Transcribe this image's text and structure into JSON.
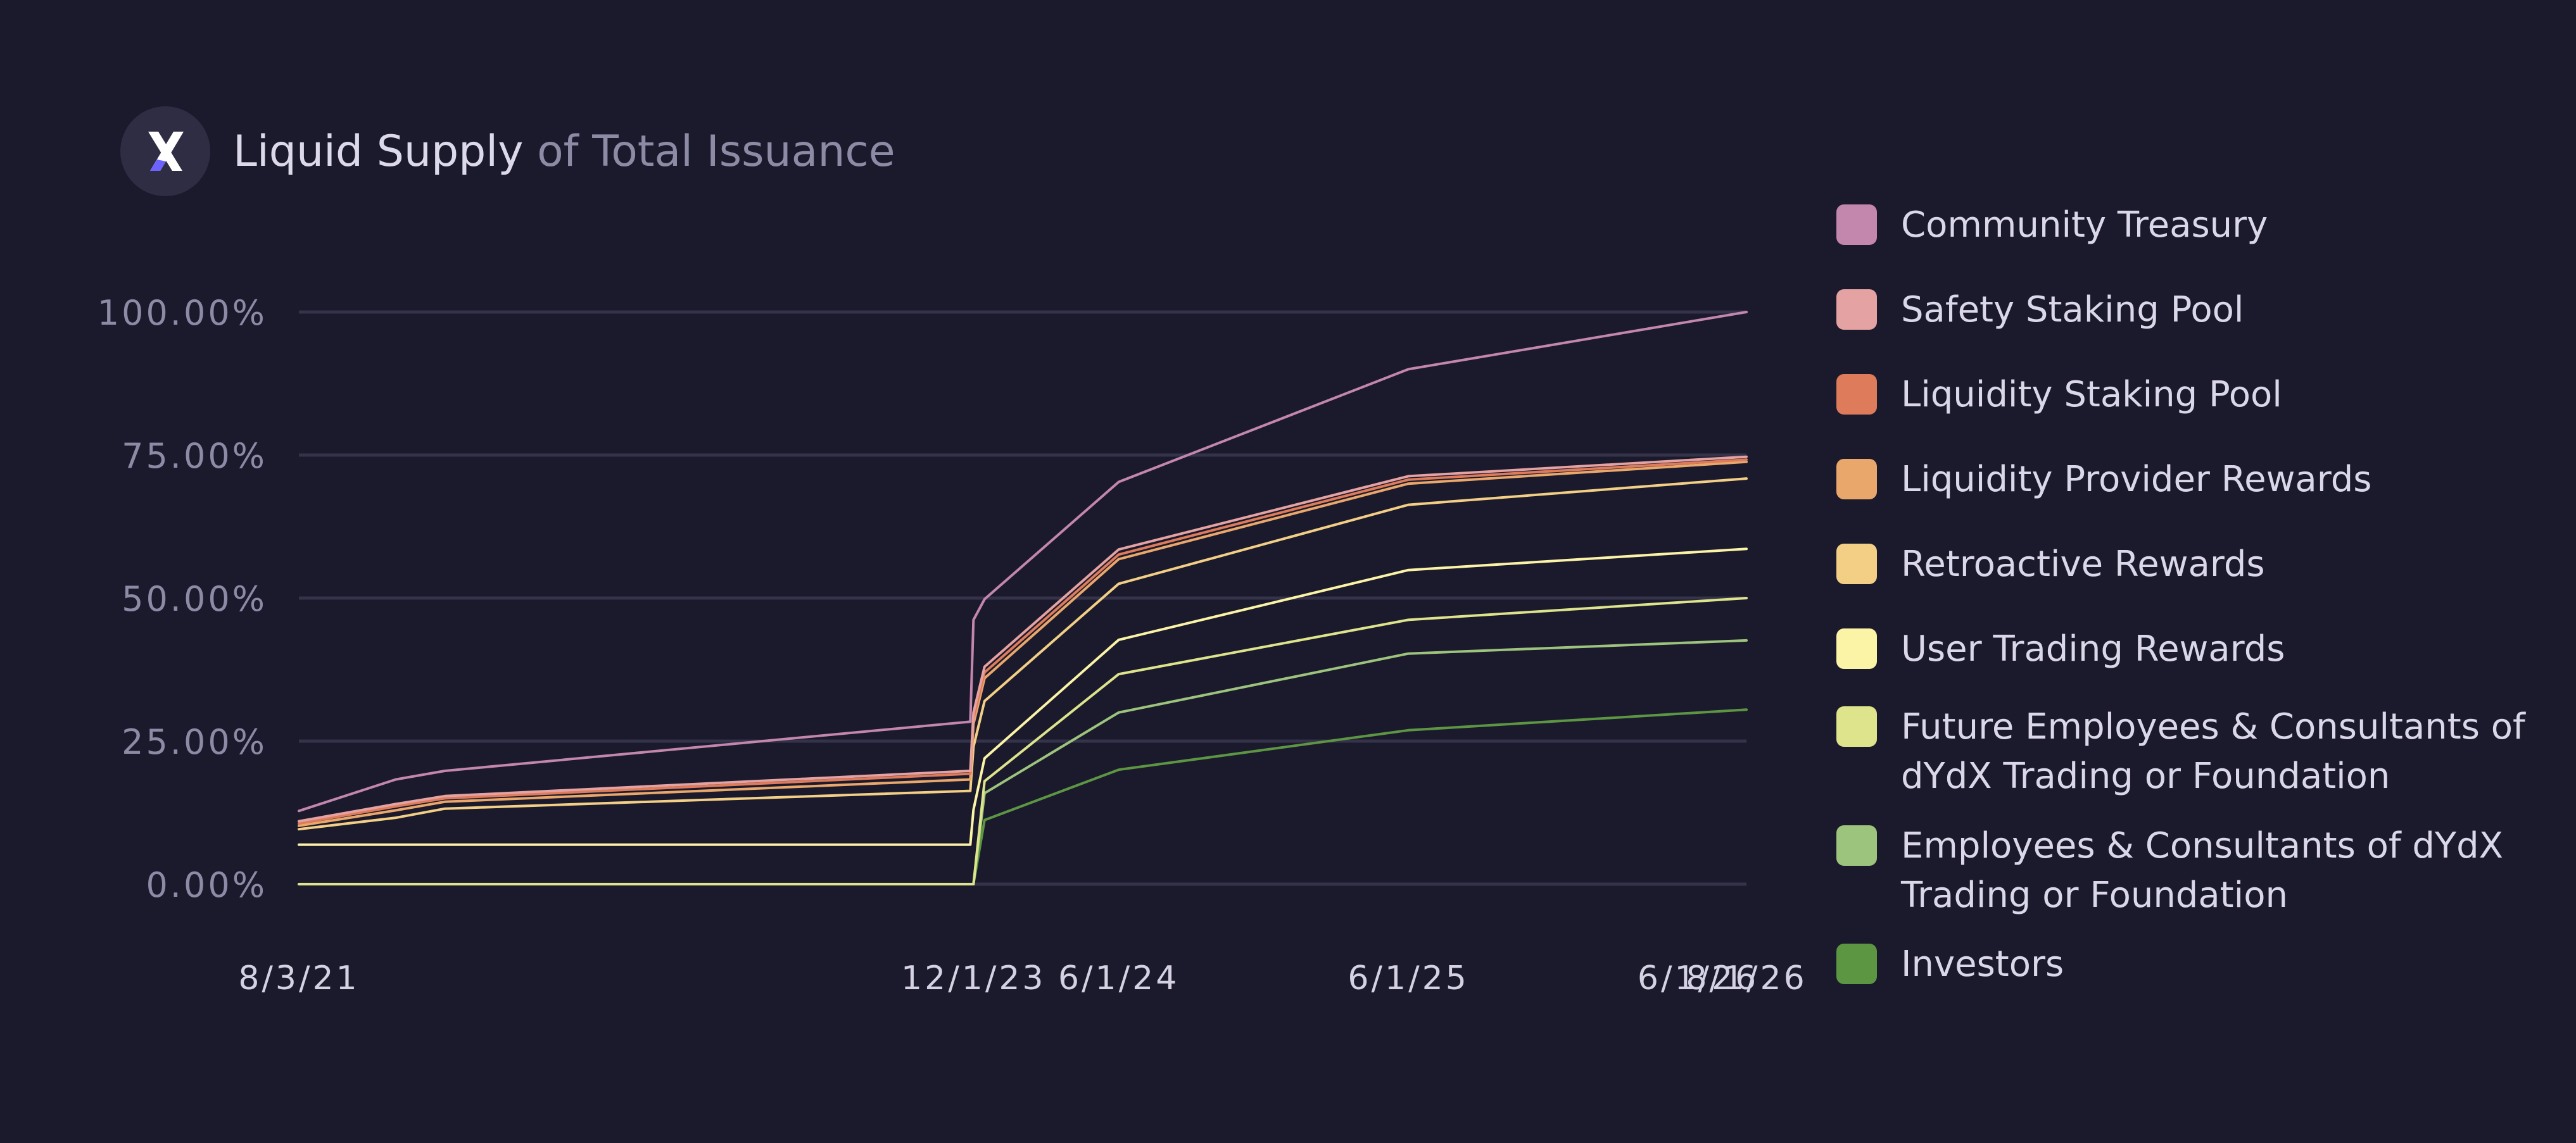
{
  "header": {
    "title_main": "Liquid Supply",
    "title_sub": "of Total Issuance",
    "logo_icon": "dydx-x-logo-icon"
  },
  "colors": {
    "background": "#1b1a2c",
    "grid": "#34334a",
    "tick_text": "#8d8aa6",
    "x_tick_text": "#d4d2e2"
  },
  "chart_data": {
    "type": "line",
    "title": "Liquid Supply of Total Issuance",
    "xlabel": "",
    "ylabel": "",
    "x": [
      "8/3/21",
      "12/3/21",
      "2/3/22",
      "11/27/23",
      "12/1/23",
      "12/15/23",
      "6/1/24",
      "6/1/25",
      "8/1/26"
    ],
    "x_ticks": [
      "8/3/21",
      "12/1/23",
      "6/1/24",
      "6/1/25",
      "6/1/26",
      "8/1/26"
    ],
    "y_ticks": [
      "100.00%",
      "75.00%",
      "50.00%",
      "25.00%",
      "0.00%"
    ],
    "ylim": [
      0,
      100
    ],
    "grid": true,
    "legend_position": "right",
    "series": [
      {
        "name": "Community Treasury",
        "color": "#c386ad",
        "values": [
          12.8,
          18.3,
          19.8,
          28.4,
          46.2,
          49.8,
          70.3,
          90.0,
          100.0
        ]
      },
      {
        "name": "Safety Staking Pool",
        "color": "#e4a2a2",
        "values": [
          11.0,
          14.0,
          15.4,
          19.8,
          30.0,
          38.0,
          58.5,
          71.3,
          74.7
        ]
      },
      {
        "name": "Liquidity Staking Pool",
        "color": "#de7b5b",
        "values": [
          10.6,
          13.6,
          15.0,
          19.3,
          29.0,
          37.0,
          57.6,
          70.7,
          74.2
        ]
      },
      {
        "name": "Liquidity Provider Rewards",
        "color": "#eaa76c",
        "values": [
          10.2,
          12.9,
          14.4,
          18.3,
          28.0,
          36.0,
          56.8,
          70.0,
          73.8
        ]
      },
      {
        "name": "Retroactive Rewards",
        "color": "#f3cf86",
        "values": [
          9.6,
          11.6,
          13.2,
          16.3,
          24.0,
          32.0,
          52.5,
          66.3,
          70.9
        ]
      },
      {
        "name": "User Trading Rewards",
        "color": "#fbf4a6",
        "values": [
          6.9,
          6.9,
          6.9,
          6.9,
          13.0,
          22.0,
          42.7,
          54.9,
          58.6
        ]
      },
      {
        "name": "Future Employees & Consultants of dYdX Trading or Foundation",
        "color": "#dde48b",
        "values": [
          0,
          0,
          0,
          0,
          0,
          18.0,
          36.7,
          46.2,
          50.0
        ]
      },
      {
        "name": "Employees & Consultants of dYdX Trading or Foundation",
        "color": "#9dc47d",
        "values": [
          0,
          0,
          0,
          0,
          0,
          15.9,
          30.0,
          40.3,
          42.6
        ]
      },
      {
        "name": "Investors",
        "color": "#5d9643",
        "values": [
          0,
          0,
          0,
          0,
          0,
          11.2,
          20.0,
          26.9,
          30.5
        ]
      }
    ]
  }
}
